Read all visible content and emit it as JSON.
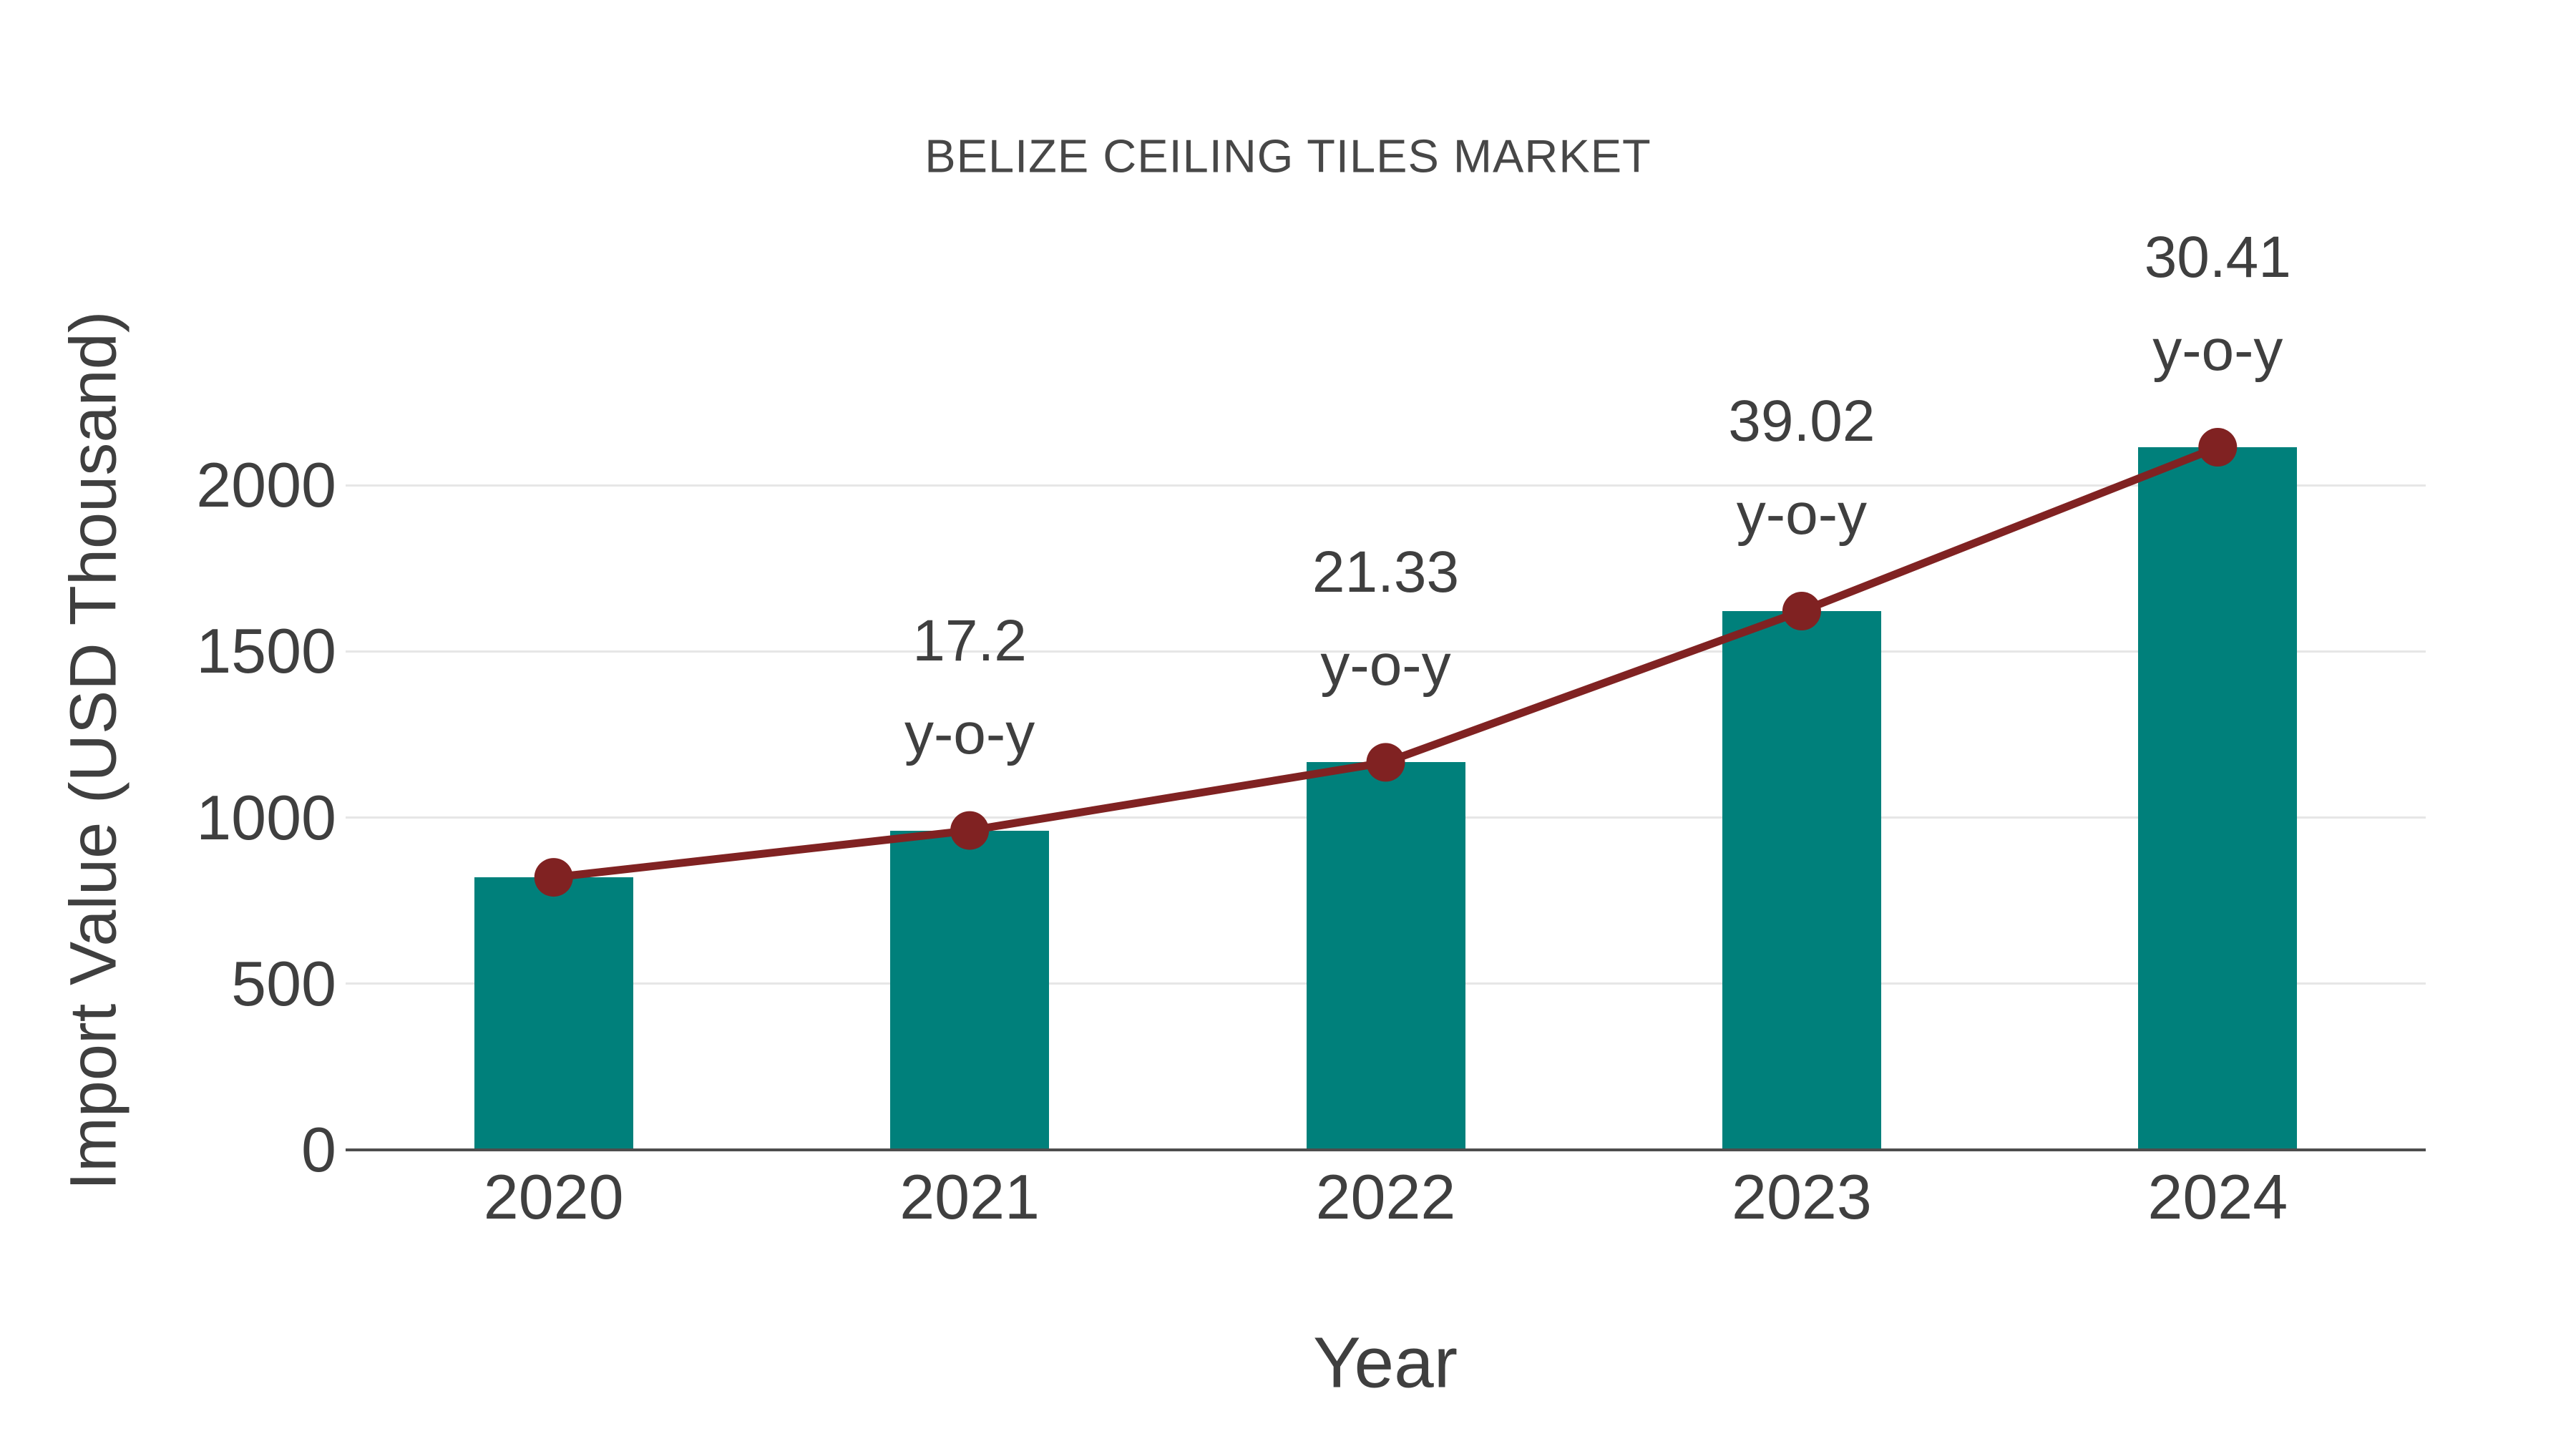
{
  "chart_data": {
    "type": "bar",
    "title": "BELIZE CEILING TILES MARKET",
    "xlabel": "Year",
    "ylabel": "Import Value (USD Thousand)",
    "categories": [
      "2020",
      "2021",
      "2022",
      "2023",
      "2024"
    ],
    "series": [
      {
        "name": "Import Value (USD Thousand)",
        "type": "bar",
        "values": [
          820,
          961,
          1166,
          1621,
          2114
        ]
      },
      {
        "name": "y-o-y growth",
        "type": "line",
        "values": [
          820,
          961,
          1166,
          1621,
          2114
        ]
      }
    ],
    "annotations": {
      "yoy_values": [
        "",
        "17.2",
        "21.33",
        "39.02",
        "30.41"
      ],
      "suffix": "y-o-y"
    },
    "y_ticks": [
      "0",
      "500",
      "1000",
      "1500",
      "2000"
    ],
    "ylim": [
      0,
      2160
    ],
    "grid": "horizontal",
    "legend_position": "none",
    "colors": {
      "bar": "#00807b",
      "line": "#802222",
      "grid": "#e6e6e6",
      "axis": "#4d4d4d",
      "text": "#3f3f3f",
      "title": "#474747",
      "background": "#ffffff"
    }
  }
}
